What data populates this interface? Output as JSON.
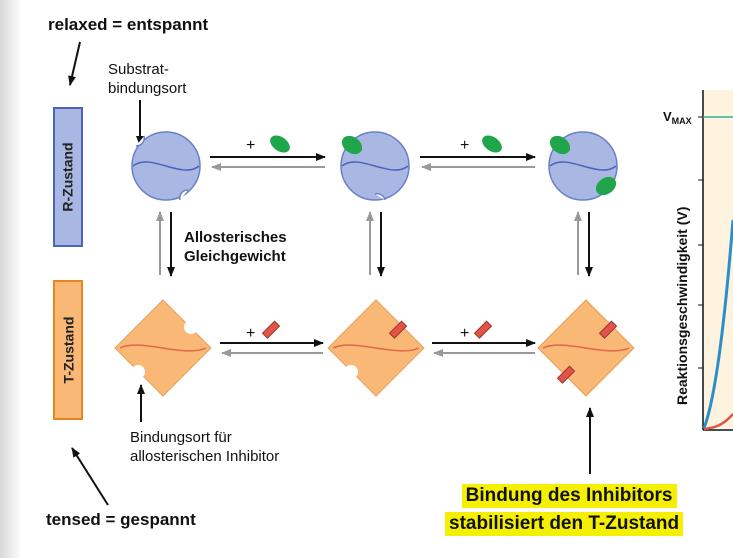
{
  "notes": {
    "relaxed": "relaxed = entspannt",
    "tensed": "tensed = gespannt"
  },
  "states": {
    "r_state": "R-Zustand",
    "t_state": "T-Zustand"
  },
  "labels": {
    "substrate_site_line1": "Substrat-",
    "substrate_site_line2": "bindungsort",
    "equilibrium_line1": "Allosterisches",
    "equilibrium_line2": "Gleichgewicht",
    "inhibitor_site_line1": "Bindungsort für",
    "inhibitor_site_line2": "allosterischen Inhibitor",
    "plus": "+"
  },
  "highlight": {
    "line1": "Bindung des Inhibitors",
    "line2": "stabilisiert den T-Zustand"
  },
  "graph": {
    "vmax_label": "V",
    "vmax_sub": "MAX",
    "y_axis_label": "Reaktionsgeschwindigkeit (V)"
  },
  "colors": {
    "r_state": "#a9b8e3",
    "t_state": "#f9b876",
    "substrate": "#1fa64a",
    "inhibitor": "#e05548",
    "highlight": "#f4f000",
    "curve": "#2a8fc8"
  }
}
